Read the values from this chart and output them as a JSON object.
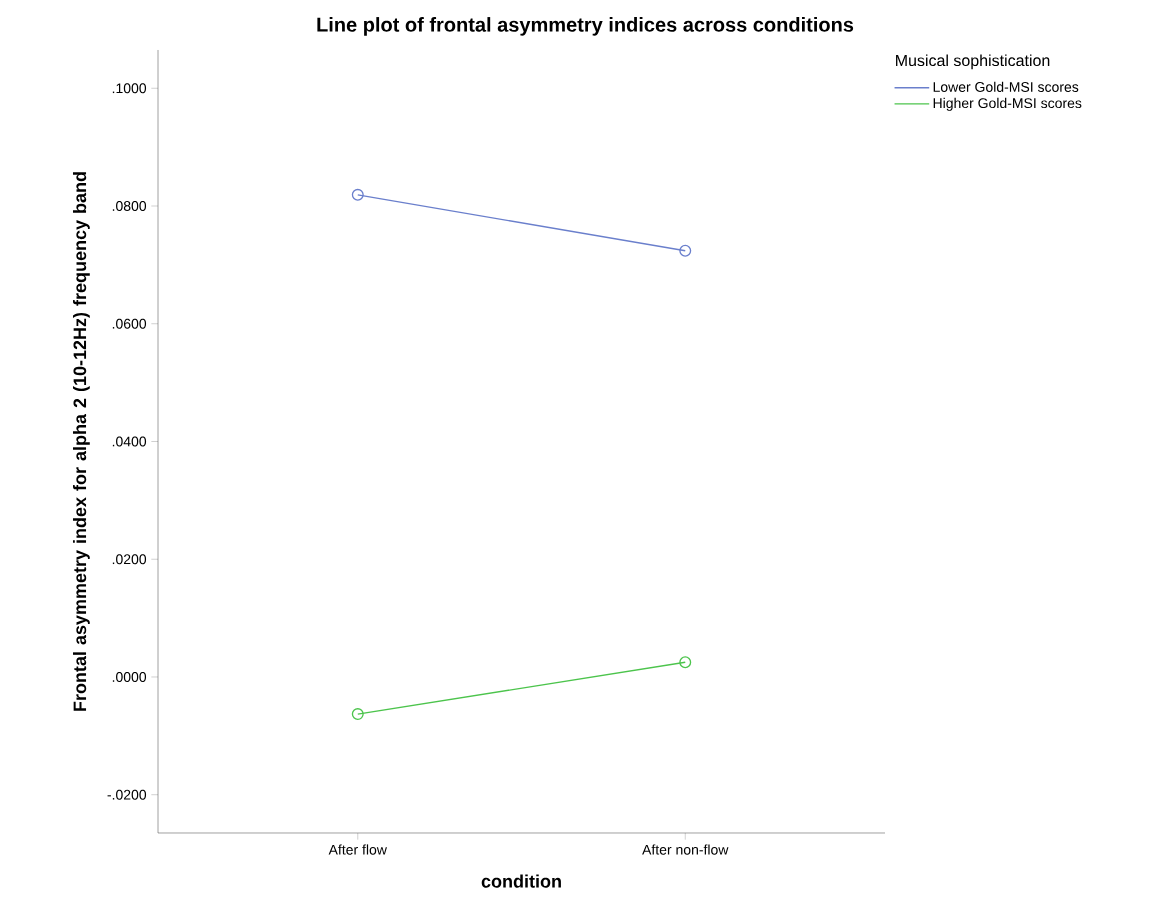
{
  "chart_data": {
    "type": "line",
    "title": "Line plot of frontal asymmetry indices across conditions",
    "xlabel": "condition",
    "ylabel": "Frontal asymmetry index for alpha 2 (10-12Hz) frequency band",
    "legend_title": "Musical sophistication",
    "legend": "top right",
    "marker": "circle",
    "line_style": "solid",
    "categories": [
      "After flow",
      "After non-flow"
    ],
    "series": [
      {
        "name": "Lower Gold-MSI scores",
        "color": "#6a7fcc",
        "values": [
          0.0819,
          0.0724
        ]
      },
      {
        "name": "Higher Gold-MSI scores",
        "color": "#4cc44c",
        "values": [
          -0.0063,
          0.0025
        ]
      }
    ],
    "ylim": [
      -0.0265,
      0.1065
    ],
    "yticks": [
      {
        "value": -0.02,
        "label": "-.0200"
      },
      {
        "value": 0.0,
        "label": ".0000"
      },
      {
        "value": 0.02,
        "label": ".0200"
      },
      {
        "value": 0.04,
        "label": ".0400"
      },
      {
        "value": 0.06,
        "label": ".0600"
      },
      {
        "value": 0.08,
        "label": ".0800"
      },
      {
        "value": 0.1,
        "label": ".1000"
      }
    ]
  }
}
